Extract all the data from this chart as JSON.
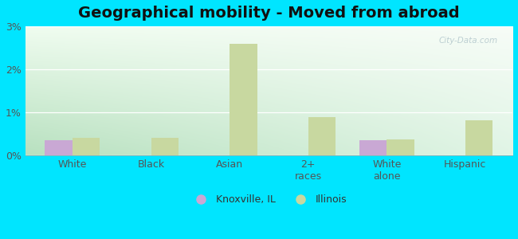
{
  "title": "Geographical mobility - Moved from abroad",
  "categories": [
    "White",
    "Black",
    "Asian",
    "2+\nraces",
    "White\nalone",
    "Hispanic"
  ],
  "knoxville_values": [
    0.35,
    0.0,
    0.0,
    0.0,
    0.35,
    0.0
  ],
  "illinois_values": [
    0.42,
    0.42,
    2.6,
    0.9,
    0.38,
    0.82
  ],
  "knoxville_color": "#c9a8d4",
  "illinois_color": "#c8d8a0",
  "background_color": "#00e5ff",
  "grad_color_topleft": "#e8f5e8",
  "grad_color_bottomleft": "#b8dfc0",
  "grad_color_right": "#f8fcf8",
  "ylim": [
    0,
    3.0
  ],
  "yticks": [
    0,
    1,
    2,
    3
  ],
  "ytick_labels": [
    "0%",
    "1%",
    "2%",
    "3%"
  ],
  "legend_knoxville": "Knoxville, IL",
  "legend_illinois": "Illinois",
  "bar_width": 0.35,
  "title_fontsize": 14,
  "tick_fontsize": 9,
  "legend_fontsize": 9
}
